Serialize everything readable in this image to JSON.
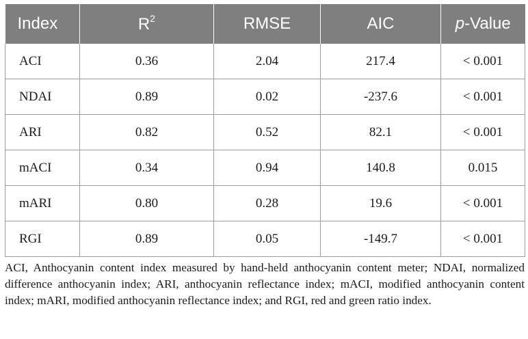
{
  "table": {
    "headers": {
      "index": "Index",
      "r2_base": "R",
      "r2_sup": "2",
      "rmse": "RMSE",
      "aic": "AIC",
      "p_italic": "p",
      "p_rest": "-Value"
    },
    "rows": [
      {
        "index": "ACI",
        "r2": "0.36",
        "rmse": "2.04",
        "aic": "217.4",
        "p": "< 0.001"
      },
      {
        "index": "NDAI",
        "r2": "0.89",
        "rmse": "0.02",
        "aic": "-237.6",
        "p": "< 0.001"
      },
      {
        "index": "ARI",
        "r2": "0.82",
        "rmse": "0.52",
        "aic": "82.1",
        "p": "< 0.001"
      },
      {
        "index": "mACI",
        "r2": "0.34",
        "rmse": "0.94",
        "aic": "140.8",
        "p": "0.015"
      },
      {
        "index": "mARI",
        "r2": "0.80",
        "rmse": "0.28",
        "aic": "19.6",
        "p": "< 0.001"
      },
      {
        "index": "RGI",
        "r2": "0.89",
        "rmse": "0.05",
        "aic": "-149.7",
        "p": "< 0.001"
      }
    ]
  },
  "footnote": "ACI, Anthocyanin content index measured by hand-held anthocyanin content meter; NDAI, normalized difference anthocyanin index; ARI, anthocyanin reflectance index; mACI, modified anthocyanin content index; mARI, modified anthocyanin reflectance index; and RGI, red and green ratio index.",
  "colors": {
    "header_bg": "#7f7f7f",
    "header_text": "#ffffff",
    "grid": "#9a9a9a"
  }
}
